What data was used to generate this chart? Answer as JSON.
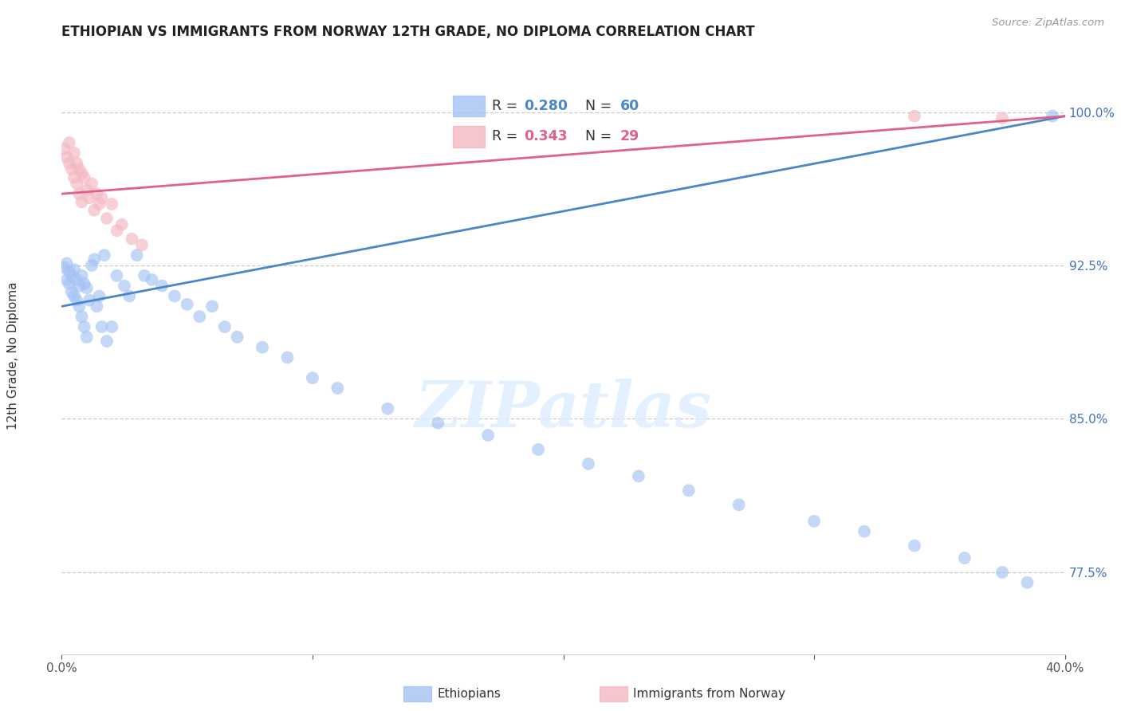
{
  "title": "ETHIOPIAN VS IMMIGRANTS FROM NORWAY 12TH GRADE, NO DIPLOMA CORRELATION CHART",
  "source": "Source: ZipAtlas.com",
  "ylabel": "12th Grade, No Diploma",
  "ytick_labels": [
    "77.5%",
    "85.0%",
    "92.5%",
    "100.0%"
  ],
  "ytick_values": [
    0.775,
    0.85,
    0.925,
    1.0
  ],
  "xmin": 0.0,
  "xmax": 0.4,
  "ymin": 0.735,
  "ymax": 1.02,
  "watermark_text": "ZIPatlas",
  "blue_color": "#a4c2f4",
  "pink_color": "#f4b8c1",
  "blue_line_color": "#4a86c8",
  "pink_line_color": "#e06090",
  "R_blue": 0.28,
  "N_blue": 60,
  "R_pink": 0.343,
  "N_pink": 29,
  "blue_x": [
    0.001,
    0.002,
    0.002,
    0.003,
    0.003,
    0.004,
    0.004,
    0.005,
    0.005,
    0.006,
    0.006,
    0.007,
    0.007,
    0.008,
    0.008,
    0.009,
    0.009,
    0.01,
    0.01,
    0.011,
    0.012,
    0.013,
    0.014,
    0.015,
    0.016,
    0.017,
    0.018,
    0.02,
    0.022,
    0.025,
    0.027,
    0.03,
    0.033,
    0.036,
    0.04,
    0.045,
    0.05,
    0.055,
    0.06,
    0.065,
    0.07,
    0.08,
    0.09,
    0.1,
    0.11,
    0.13,
    0.15,
    0.17,
    0.19,
    0.21,
    0.23,
    0.25,
    0.27,
    0.3,
    0.32,
    0.34,
    0.36,
    0.375,
    0.385,
    0.395
  ],
  "blue_y": [
    0.924,
    0.926,
    0.918,
    0.922,
    0.916,
    0.92,
    0.912,
    0.923,
    0.91,
    0.918,
    0.908,
    0.915,
    0.905,
    0.92,
    0.9,
    0.916,
    0.895,
    0.914,
    0.89,
    0.908,
    0.925,
    0.928,
    0.905,
    0.91,
    0.895,
    0.93,
    0.888,
    0.895,
    0.92,
    0.915,
    0.91,
    0.93,
    0.92,
    0.918,
    0.915,
    0.91,
    0.906,
    0.9,
    0.905,
    0.895,
    0.89,
    0.885,
    0.88,
    0.87,
    0.865,
    0.855,
    0.848,
    0.842,
    0.835,
    0.828,
    0.822,
    0.815,
    0.808,
    0.8,
    0.795,
    0.788,
    0.782,
    0.775,
    0.77,
    0.998
  ],
  "pink_x": [
    0.001,
    0.002,
    0.003,
    0.003,
    0.004,
    0.005,
    0.005,
    0.006,
    0.006,
    0.007,
    0.007,
    0.008,
    0.008,
    0.009,
    0.01,
    0.011,
    0.012,
    0.013,
    0.014,
    0.015,
    0.016,
    0.018,
    0.02,
    0.022,
    0.024,
    0.028,
    0.032,
    0.34,
    0.375
  ],
  "pink_y": [
    0.982,
    0.978,
    0.975,
    0.985,
    0.972,
    0.98,
    0.968,
    0.975,
    0.965,
    0.972,
    0.96,
    0.97,
    0.956,
    0.968,
    0.962,
    0.958,
    0.965,
    0.952,
    0.96,
    0.955,
    0.958,
    0.948,
    0.955,
    0.942,
    0.945,
    0.938,
    0.935,
    0.998,
    0.997
  ],
  "blue_trend": [
    0.0,
    0.4
  ],
  "blue_trend_y": [
    0.905,
    0.998
  ],
  "pink_trend": [
    0.0,
    0.4
  ],
  "pink_trend_y": [
    0.96,
    0.998
  ]
}
